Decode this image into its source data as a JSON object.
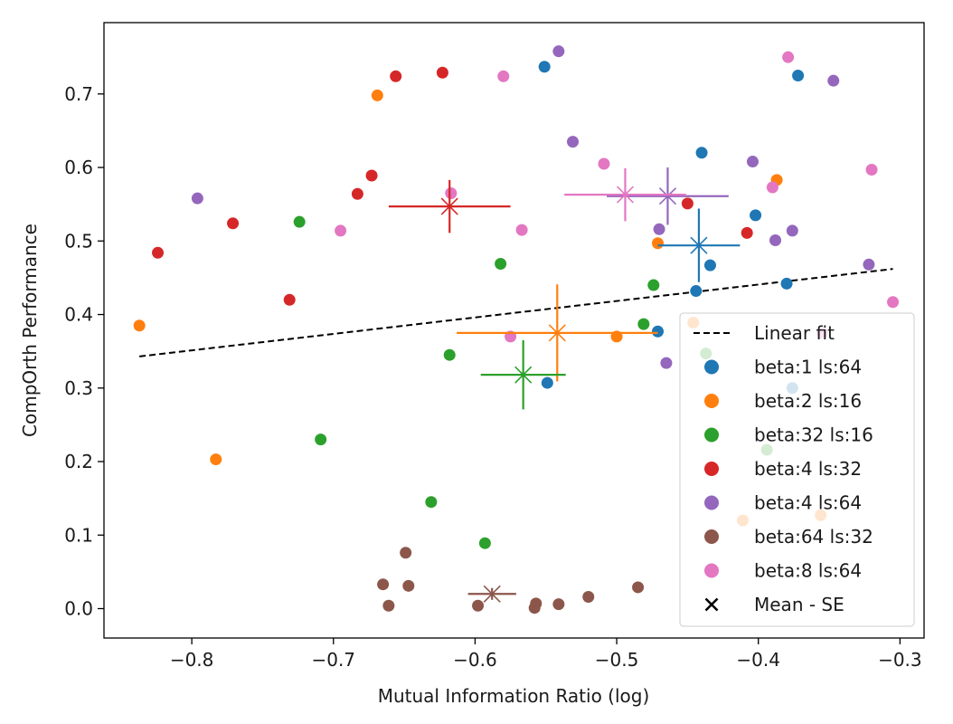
{
  "chart_data": {
    "type": "scatter",
    "xlabel": "Mutual Information Ratio (log)",
    "ylabel": "CompOrth Performance",
    "xlim": [
      -0.862,
      -0.283
    ],
    "ylim": [
      -0.04,
      0.797
    ],
    "xticks": [
      -0.8,
      -0.7,
      -0.6,
      -0.5,
      -0.4,
      -0.3
    ],
    "xtick_labels": [
      "−0.8",
      "−0.7",
      "−0.6",
      "−0.5",
      "−0.4",
      "−0.3"
    ],
    "yticks": [
      0.0,
      0.1,
      0.2,
      0.3,
      0.4,
      0.5,
      0.6,
      0.7
    ],
    "ytick_labels": [
      "0.0",
      "0.1",
      "0.2",
      "0.3",
      "0.4",
      "0.5",
      "0.6",
      "0.7"
    ],
    "grid": false,
    "legend_position": "lower-right",
    "linear_fit": {
      "label": "Linear fit",
      "x": [
        -0.837,
        -0.305
      ],
      "y": [
        0.343,
        0.462
      ],
      "color": "#000000",
      "style": "dashed"
    },
    "series": [
      {
        "name": "beta:1 ls:64",
        "color": "#1f77b4",
        "points": [
          [
            -0.551,
            0.737
          ],
          [
            -0.372,
            0.725
          ],
          [
            -0.44,
            0.62
          ],
          [
            -0.402,
            0.535
          ],
          [
            -0.434,
            0.467
          ],
          [
            -0.444,
            0.432
          ],
          [
            -0.38,
            0.442
          ],
          [
            -0.471,
            0.377
          ],
          [
            -0.549,
            0.307
          ],
          [
            -0.376,
            0.3
          ]
        ],
        "mean": [
          -0.442,
          0.494
        ],
        "se_x": 0.029,
        "se_y": 0.05
      },
      {
        "name": "beta:2 ls:16",
        "color": "#ff7f0e",
        "points": [
          [
            -0.669,
            0.698
          ],
          [
            -0.387,
            0.583
          ],
          [
            -0.471,
            0.497
          ],
          [
            -0.837,
            0.385
          ],
          [
            -0.446,
            0.389
          ],
          [
            -0.5,
            0.37
          ],
          [
            -0.783,
            0.203
          ],
          [
            -0.411,
            0.12
          ],
          [
            -0.356,
            0.127
          ]
        ],
        "mean": [
          -0.542,
          0.375
        ],
        "se_x": 0.071,
        "se_y": 0.066
      },
      {
        "name": "beta:32 ls:16",
        "color": "#2ca02c",
        "points": [
          [
            -0.724,
            0.526
          ],
          [
            -0.582,
            0.469
          ],
          [
            -0.474,
            0.44
          ],
          [
            -0.481,
            0.387
          ],
          [
            -0.618,
            0.345
          ],
          [
            -0.437,
            0.347
          ],
          [
            -0.709,
            0.23
          ],
          [
            -0.631,
            0.145
          ],
          [
            -0.593,
            0.089
          ],
          [
            -0.394,
            0.216
          ]
        ],
        "mean": [
          -0.566,
          0.318
        ],
        "se_x": 0.03,
        "se_y": 0.047
      },
      {
        "name": "beta:4 ls:32",
        "color": "#d62728",
        "points": [
          [
            -0.656,
            0.724
          ],
          [
            -0.623,
            0.729
          ],
          [
            -0.673,
            0.589
          ],
          [
            -0.683,
            0.564
          ],
          [
            -0.771,
            0.524
          ],
          [
            -0.824,
            0.484
          ],
          [
            -0.731,
            0.42
          ],
          [
            -0.45,
            0.551
          ],
          [
            -0.408,
            0.511
          ]
        ],
        "mean": [
          -0.618,
          0.547
        ],
        "se_x": 0.043,
        "se_y": 0.036
      },
      {
        "name": "beta:4 ls:64",
        "color": "#9467bd",
        "points": [
          [
            -0.541,
            0.758
          ],
          [
            -0.347,
            0.718
          ],
          [
            -0.531,
            0.635
          ],
          [
            -0.404,
            0.608
          ],
          [
            -0.796,
            0.558
          ],
          [
            -0.47,
            0.516
          ],
          [
            -0.388,
            0.501
          ],
          [
            -0.376,
            0.514
          ],
          [
            -0.322,
            0.468
          ],
          [
            -0.465,
            0.334
          ]
        ],
        "mean": [
          -0.464,
          0.561
        ],
        "se_x": 0.043,
        "se_y": 0.039
      },
      {
        "name": "beta:64 ls:32",
        "color": "#8c564b",
        "points": [
          [
            -0.649,
            0.076
          ],
          [
            -0.665,
            0.033
          ],
          [
            -0.647,
            0.031
          ],
          [
            -0.661,
            0.004
          ],
          [
            -0.598,
            0.004
          ],
          [
            -0.557,
            0.007
          ],
          [
            -0.558,
            0.001
          ],
          [
            -0.541,
            0.006
          ],
          [
            -0.52,
            0.016
          ],
          [
            -0.485,
            0.029
          ]
        ],
        "mean": [
          -0.588,
          0.02
        ],
        "se_x": 0.017,
        "se_y": 0.008
      },
      {
        "name": "beta:8 ls:64",
        "color": "#e377c2",
        "points": [
          [
            -0.379,
            0.75
          ],
          [
            -0.58,
            0.724
          ],
          [
            -0.509,
            0.605
          ],
          [
            -0.39,
            0.573
          ],
          [
            -0.32,
            0.597
          ],
          [
            -0.617,
            0.565
          ],
          [
            -0.695,
            0.514
          ],
          [
            -0.567,
            0.515
          ],
          [
            -0.575,
            0.37
          ],
          [
            -0.355,
            0.375
          ],
          [
            -0.305,
            0.417
          ]
        ],
        "mean": [
          -0.494,
          0.563
        ],
        "se_x": 0.043,
        "se_y": 0.036
      }
    ],
    "mean_marker_label": "Mean - SE"
  }
}
